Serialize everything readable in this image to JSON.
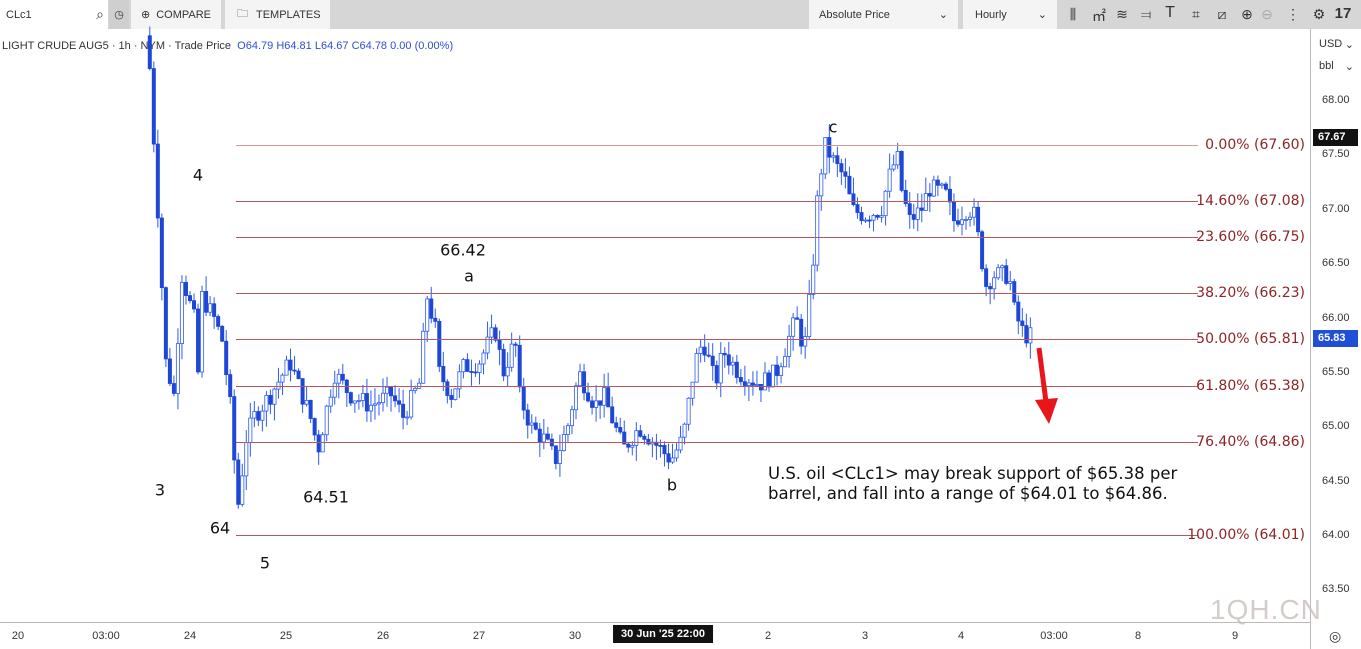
{
  "toolbar": {
    "symbol": "CLc1",
    "compare": "COMPARE",
    "templates": "TEMPLATES",
    "price_mode": "Absolute Price",
    "interval": "Hourly",
    "icons": [
      "candlestick-icon",
      "indicators-icon",
      "studies-icon",
      "drawing-lines-icon",
      "text-icon",
      "rectangle-icon",
      "shape-icon",
      "zoom-in-icon",
      "zoom-out-icon",
      "more-icon",
      "settings-icon",
      "tradingview-logo-icon"
    ]
  },
  "legend": {
    "title": "LIGHT CRUDE AUG5 · 1h · NYM · Trade Price",
    "open": "O64.79",
    "high": "H64.81",
    "low": "L64.67",
    "close": "C64.78",
    "change": "0.00 (0.00%)"
  },
  "price_axis": {
    "currency": "USD",
    "unit": "bbl",
    "last_high_badge": "67.67",
    "last_price_badge": "65.83"
  },
  "watermark": "1QH.CN",
  "chart_data": {
    "type": "candlestick",
    "title": "",
    "ylim": [
      63.3,
      68.4
    ],
    "y_ticks": [
      "68.00",
      "67.50",
      "67.00",
      "66.50",
      "66.00",
      "65.50",
      "65.00",
      "64.50",
      "64.00",
      "63.50"
    ],
    "x_ticks": [
      "20",
      "03:00",
      "24",
      "25",
      "26",
      "27",
      "30",
      "30 Jun '25  22:00",
      "2",
      "3",
      "4",
      "03:00",
      "8",
      "9"
    ],
    "up_color": "#ffffff",
    "down_color": "#1e47d6",
    "outline_color": "#2f5cf0",
    "close_path": [
      [
        "06-23 14",
        68.3
      ],
      [
        "06-23 16",
        67.0
      ],
      [
        "06-23 18",
        65.6
      ],
      [
        "06-23 20",
        65.3
      ],
      [
        "06-23 22",
        66.4
      ],
      [
        "06-24 01",
        66.0
      ],
      [
        "06-24 02",
        65.5
      ],
      [
        "06-24 03",
        66.2
      ],
      [
        "06-24 06",
        66.0
      ],
      [
        "06-24 08",
        65.8
      ],
      [
        "06-24 10",
        65.2
      ],
      [
        "06-24 11",
        64.7
      ],
      [
        "06-24 12",
        64.3
      ],
      [
        "06-24 14",
        64.9
      ],
      [
        "06-24 16",
        65.1
      ],
      [
        "06-24 20",
        65.3
      ],
      [
        "06-25 01",
        65.6
      ],
      [
        "06-25 03",
        65.4
      ],
      [
        "06-25 06",
        65.1
      ],
      [
        "06-25 08",
        64.8
      ],
      [
        "06-25 12",
        65.5
      ],
      [
        "06-25 16",
        65.3
      ],
      [
        "06-25 21",
        65.2
      ],
      [
        "06-26 02",
        65.3
      ],
      [
        "06-26 05",
        65.1
      ],
      [
        "06-26 09",
        65.4
      ],
      [
        "06-26 11",
        66.2
      ],
      [
        "06-26 13",
        65.9
      ],
      [
        "06-26 14",
        65.5
      ],
      [
        "06-26 17",
        65.3
      ],
      [
        "06-26 20",
        65.55
      ],
      [
        "06-27 00",
        65.6
      ],
      [
        "06-27 04",
        65.9
      ],
      [
        "06-27 06",
        65.5
      ],
      [
        "06-27 09",
        65.8
      ],
      [
        "06-27 10",
        65.3
      ],
      [
        "06-27 13",
        65.0
      ],
      [
        "06-27 16",
        64.9
      ],
      [
        "06-27 19",
        64.7
      ],
      [
        "06-27 22",
        65.0
      ],
      [
        "06-30 01",
        65.5
      ],
      [
        "06-30 05",
        65.2
      ],
      [
        "06-30 07",
        65.3
      ],
      [
        "06-30 10",
        65.0
      ],
      [
        "06-30 12",
        64.8
      ],
      [
        "06-30 16",
        65.0
      ],
      [
        "06-30 20",
        64.85
      ],
      [
        "07-01 00",
        64.7
      ],
      [
        "07-01 03",
        64.9
      ],
      [
        "07-01 06",
        65.6
      ],
      [
        "07-01 08",
        65.8
      ],
      [
        "07-01 11",
        65.4
      ],
      [
        "07-01 13",
        65.7
      ],
      [
        "07-01 17",
        65.5
      ],
      [
        "07-01 22",
        65.4
      ],
      [
        "07-02 02",
        65.5
      ],
      [
        "07-02 04",
        65.7
      ],
      [
        "07-02 07",
        66.0
      ],
      [
        "07-02 09",
        65.7
      ],
      [
        "07-02 11",
        66.4
      ],
      [
        "07-02 12",
        67.0
      ],
      [
        "07-02 14",
        67.6
      ],
      [
        "07-02 17",
        67.4
      ],
      [
        "07-02 19",
        67.3
      ],
      [
        "07-02 21",
        67.0
      ],
      [
        "07-03 00",
        66.95
      ],
      [
        "07-03 04",
        67.0
      ],
      [
        "07-03 06",
        67.3
      ],
      [
        "07-03 08",
        67.5
      ],
      [
        "07-03 09",
        67.2
      ],
      [
        "07-03 11",
        66.9
      ],
      [
        "07-03 14",
        67.0
      ],
      [
        "07-03 16",
        67.2
      ],
      [
        "07-03 20",
        67.15
      ],
      [
        "07-03 22",
        66.9
      ],
      [
        "07-04 01",
        67.0
      ],
      [
        "07-04 03",
        67.0
      ],
      [
        "07-04 05",
        66.6
      ],
      [
        "07-04 06",
        66.3
      ],
      [
        "07-04 08",
        66.4
      ],
      [
        "07-04 12",
        66.4
      ],
      [
        "07-04 13",
        66.1
      ],
      [
        "07-04 15",
        65.9
      ],
      [
        "07-04 16",
        65.85
      ],
      [
        "07-04 18",
        65.83
      ]
    ],
    "fib_levels": [
      {
        "label": "0.00% (67.60)",
        "price": 67.6
      },
      {
        "label": "14.60% (67.08)",
        "price": 67.08
      },
      {
        "label": "23.60% (66.75)",
        "price": 66.75
      },
      {
        "label": "38.20% (66.23)",
        "price": 66.23
      },
      {
        "label": "50.00% (65.81)",
        "price": 65.81
      },
      {
        "label": "61.80% (65.38)",
        "price": 65.38
      },
      {
        "label": "76.40% (64.86)",
        "price": 64.86
      },
      {
        "label": "100.00% (64.01)",
        "price": 64.01
      }
    ],
    "annotations": {
      "wave_3": "3",
      "wave_4": "4",
      "wave_5": "5",
      "low_64": "64",
      "low_6451": "64.51",
      "high_6642": "66.42",
      "wave_a": "a",
      "wave_b": "b",
      "wave_c": "c",
      "note_line1": "U.S. oil <CLc1> may break support of $65.38 per",
      "note_line2": "barrel, and fall into a range of $64.01 to $64.86.",
      "arrow_color": "#e8151b"
    }
  }
}
